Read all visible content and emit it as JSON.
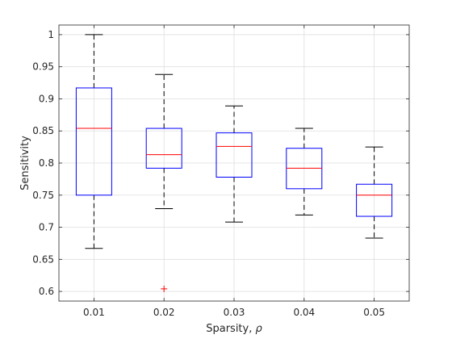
{
  "chart_data": {
    "type": "box",
    "xlabel": "Sparsity, ",
    "xlabel_symbol": "ρ",
    "ylabel": "Sensitivity",
    "ylim": [
      0.585,
      1.015
    ],
    "yticks": [
      0.6,
      0.65,
      0.7,
      0.75,
      0.8,
      0.85,
      0.9,
      0.95,
      1
    ],
    "ytick_labels": [
      "0.6",
      "0.65",
      "0.7",
      "0.75",
      "0.8",
      "0.85",
      "0.9",
      "0.95",
      "1"
    ],
    "grid": true,
    "categories": [
      "0.01",
      "0.02",
      "0.03",
      "0.04",
      "0.05"
    ],
    "boxes": [
      {
        "category": "0.01",
        "whisker_low": 0.667,
        "q1": 0.75,
        "median": 0.854,
        "q3": 0.917,
        "whisker_high": 1.0,
        "outliers": []
      },
      {
        "category": "0.02",
        "whisker_low": 0.729,
        "q1": 0.792,
        "median": 0.813,
        "q3": 0.854,
        "whisker_high": 0.938,
        "outliers": [
          0.604
        ]
      },
      {
        "category": "0.03",
        "whisker_low": 0.708,
        "q1": 0.778,
        "median": 0.826,
        "q3": 0.847,
        "whisker_high": 0.889,
        "outliers": []
      },
      {
        "category": "0.04",
        "whisker_low": 0.719,
        "q1": 0.76,
        "median": 0.792,
        "q3": 0.823,
        "whisker_high": 0.854,
        "outliers": []
      },
      {
        "category": "0.05",
        "whisker_low": 0.683,
        "q1": 0.717,
        "median": 0.75,
        "q3": 0.767,
        "whisker_high": 0.825,
        "outliers": []
      }
    ],
    "colors": {
      "box": "#0000ff",
      "median": "#ff0000",
      "whisker": "#000000",
      "outlier": "#ff0000",
      "grid": "#dfdfdf",
      "axis": "#262626"
    }
  }
}
